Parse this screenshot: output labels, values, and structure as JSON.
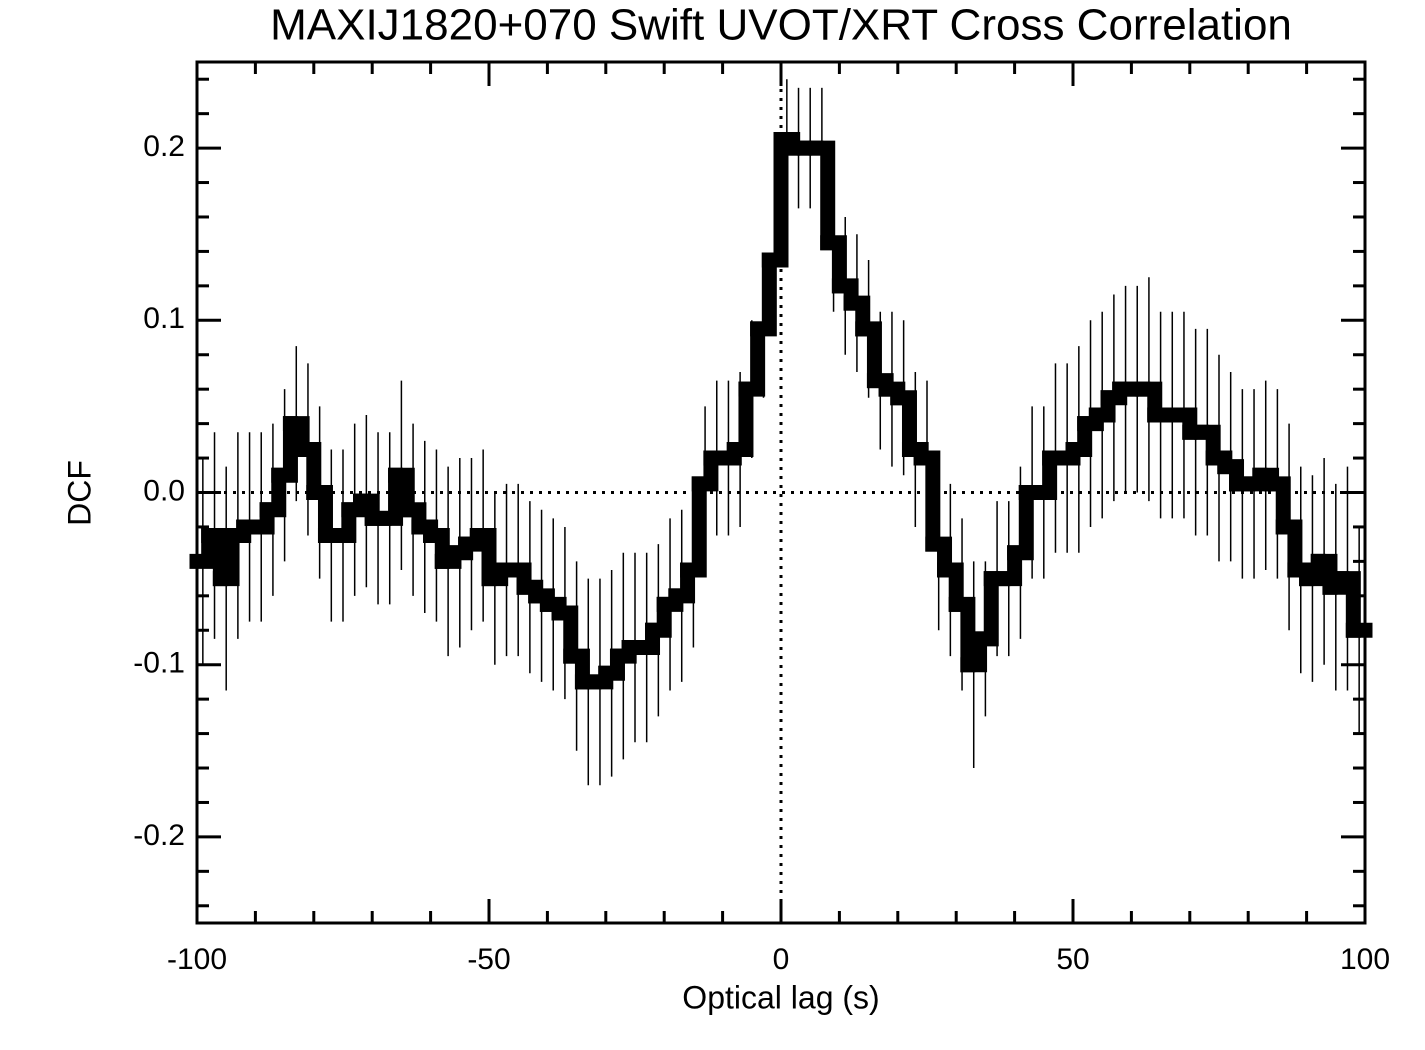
{
  "chart_data": {
    "type": "step",
    "title": "MAXIJ1820+070 Swift UVOT/XRT Cross Correlation",
    "x_label": "Optical lag (s)",
    "y_label": "DCF",
    "xlim": [
      -100,
      100
    ],
    "ylim": [
      -0.25,
      0.25
    ],
    "xticks": [
      -100,
      -50,
      0,
      50,
      100
    ],
    "yticks": [
      -0.2,
      -0.1,
      {
        "value": 0,
        "label": "0.0"
      },
      0.1,
      0.2
    ],
    "xminorticks": [
      -90,
      -80,
      -70,
      -60,
      -40,
      -30,
      -20,
      -10,
      10,
      20,
      30,
      40,
      60,
      70,
      80,
      90
    ],
    "yminorticks": [
      -0.24,
      -0.22,
      -0.18,
      -0.16,
      -0.14,
      -0.12,
      -0.08,
      -0.06,
      -0.04,
      -0.02,
      0.02,
      0.04,
      0.06,
      0.08,
      0.12,
      0.14,
      0.16,
      0.18,
      0.22,
      0.24
    ],
    "hlines": [
      0
    ],
    "vlines": [
      0
    ],
    "color": "#000000",
    "x": [
      -99,
      -97,
      -95,
      -93,
      -91,
      -89,
      -87,
      -85,
      -83,
      -81,
      -79,
      -77,
      -75,
      -73,
      -71,
      -69,
      -67,
      -65,
      -63,
      -61,
      -59,
      -57,
      -55,
      -53,
      -51,
      -49,
      -47,
      -45,
      -43,
      -41,
      -39,
      -37,
      -35,
      -33,
      -31,
      -29,
      -27,
      -25,
      -23,
      -21,
      -19,
      -17,
      -15,
      -13,
      -11,
      -9,
      -7,
      -5,
      -3,
      -1,
      1,
      3,
      5,
      7,
      9,
      11,
      13,
      15,
      17,
      19,
      21,
      23,
      25,
      27,
      29,
      31,
      33,
      35,
      37,
      39,
      41,
      43,
      45,
      47,
      49,
      51,
      53,
      55,
      57,
      59,
      61,
      63,
      65,
      67,
      69,
      71,
      73,
      75,
      77,
      79,
      81,
      83,
      85,
      87,
      89,
      91,
      93,
      95,
      97,
      99
    ],
    "values": [
      -0.04,
      -0.025,
      -0.05,
      -0.025,
      -0.02,
      -0.02,
      -0.01,
      0.01,
      0.04,
      0.025,
      0.0,
      -0.025,
      -0.025,
      -0.01,
      -0.005,
      -0.015,
      -0.015,
      0.01,
      -0.01,
      -0.02,
      -0.025,
      -0.04,
      -0.035,
      -0.03,
      -0.025,
      -0.05,
      -0.045,
      -0.045,
      -0.055,
      -0.06,
      -0.065,
      -0.07,
      -0.095,
      -0.11,
      -0.11,
      -0.105,
      -0.095,
      -0.09,
      -0.09,
      -0.08,
      -0.065,
      -0.06,
      -0.045,
      0.005,
      0.02,
      0.02,
      0.025,
      0.06,
      0.095,
      0.135,
      0.205,
      0.2,
      0.2,
      0.2,
      0.145,
      0.12,
      0.11,
      0.095,
      0.065,
      0.06,
      0.055,
      0.025,
      0.02,
      -0.03,
      -0.045,
      -0.065,
      -0.1,
      -0.085,
      -0.05,
      -0.05,
      -0.035,
      0.0,
      0.0,
      0.02,
      0.02,
      0.025,
      0.04,
      0.045,
      0.055,
      0.06,
      0.06,
      0.06,
      0.045,
      0.045,
      0.045,
      0.035,
      0.035,
      0.02,
      0.015,
      0.005,
      0.005,
      0.01,
      0.005,
      -0.02,
      -0.045,
      -0.05,
      -0.04,
      -0.055,
      -0.05,
      -0.08
    ],
    "errors": [
      0.06,
      0.06,
      0.065,
      0.06,
      0.055,
      0.055,
      0.05,
      0.05,
      0.045,
      0.05,
      0.05,
      0.05,
      0.05,
      0.05,
      0.05,
      0.05,
      0.05,
      0.055,
      0.05,
      0.05,
      0.05,
      0.055,
      0.055,
      0.05,
      0.05,
      0.05,
      0.05,
      0.05,
      0.05,
      0.05,
      0.05,
      0.05,
      0.055,
      0.06,
      0.06,
      0.06,
      0.06,
      0.055,
      0.055,
      0.05,
      0.05,
      0.05,
      0.045,
      0.045,
      0.045,
      0.045,
      0.045,
      0.04,
      0.04,
      0.04,
      0.035,
      0.035,
      0.035,
      0.035,
      0.04,
      0.04,
      0.04,
      0.04,
      0.04,
      0.045,
      0.045,
      0.045,
      0.045,
      0.05,
      0.05,
      0.05,
      0.06,
      0.045,
      0.045,
      0.045,
      0.05,
      0.05,
      0.05,
      0.055,
      0.055,
      0.06,
      0.06,
      0.06,
      0.06,
      0.06,
      0.06,
      0.065,
      0.06,
      0.06,
      0.06,
      0.06,
      0.06,
      0.06,
      0.055,
      0.055,
      0.055,
      0.055,
      0.055,
      0.06,
      0.06,
      0.06,
      0.06,
      0.06,
      0.065,
      0.06
    ]
  }
}
